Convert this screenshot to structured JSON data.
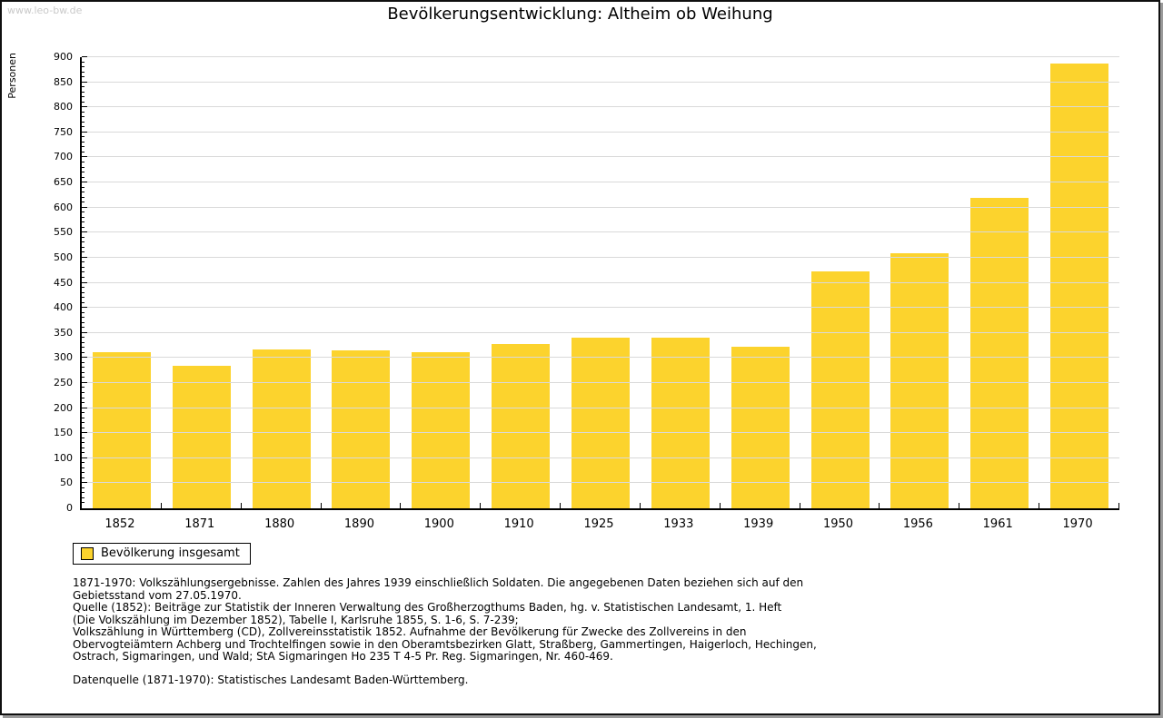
{
  "page": {
    "watermark": "www.leo-bw.de"
  },
  "chart_data": {
    "type": "bar",
    "title": "Bevölkerungsentwicklung: Altheim ob Weihung",
    "ylabel": "Personen",
    "xlabel": "",
    "categories": [
      "1852",
      "1871",
      "1880",
      "1890",
      "1900",
      "1910",
      "1925",
      "1933",
      "1939",
      "1950",
      "1956",
      "1961",
      "1970"
    ],
    "values": [
      311,
      284,
      317,
      315,
      311,
      327,
      341,
      341,
      323,
      473,
      509,
      620,
      888
    ],
    "ylim": [
      0,
      900
    ],
    "ytick_step": 50,
    "minor_tick_step": 10,
    "grid": true,
    "grid_color": "#d9d9d9",
    "bar_color": "#fcd32d",
    "legend": {
      "label": "Bevölkerung insgesamt",
      "position": "bottom-left"
    }
  },
  "footer": {
    "sources": "1871-1970: Volkszählungsergebnisse. Zahlen des Jahres 1939 einschließlich Soldaten. Die angegebenen Daten beziehen sich auf den\nGebietsstand vom 27.05.1970.\nQuelle (1852): Beiträge zur Statistik der Inneren Verwaltung des Großherzogthums Baden, hg. v. Statistischen Landesamt, 1. Heft\n(Die Volkszählung im Dezember 1852), Tabelle I, Karlsruhe 1855, S. 1-6, S. 7-239;\nVolkszählung in Württemberg (CD), Zollvereinsstatistik 1852. Aufnahme der Bevölkerung für Zwecke des Zollvereins in den\nObervogteiämtern Achberg und Trochtelfingen sowie in den Oberamtsbezirken Glatt, Straßberg, Gammertingen, Haigerloch, Hechingen,\nOstrach, Sigmaringen, und Wald; StA Sigmaringen Ho 235 T 4-5 Pr. Reg. Sigmaringen, Nr. 460-469.",
    "datenquelle": "Datenquelle (1871-1970): Statistisches Landesamt Baden-Württemberg."
  }
}
